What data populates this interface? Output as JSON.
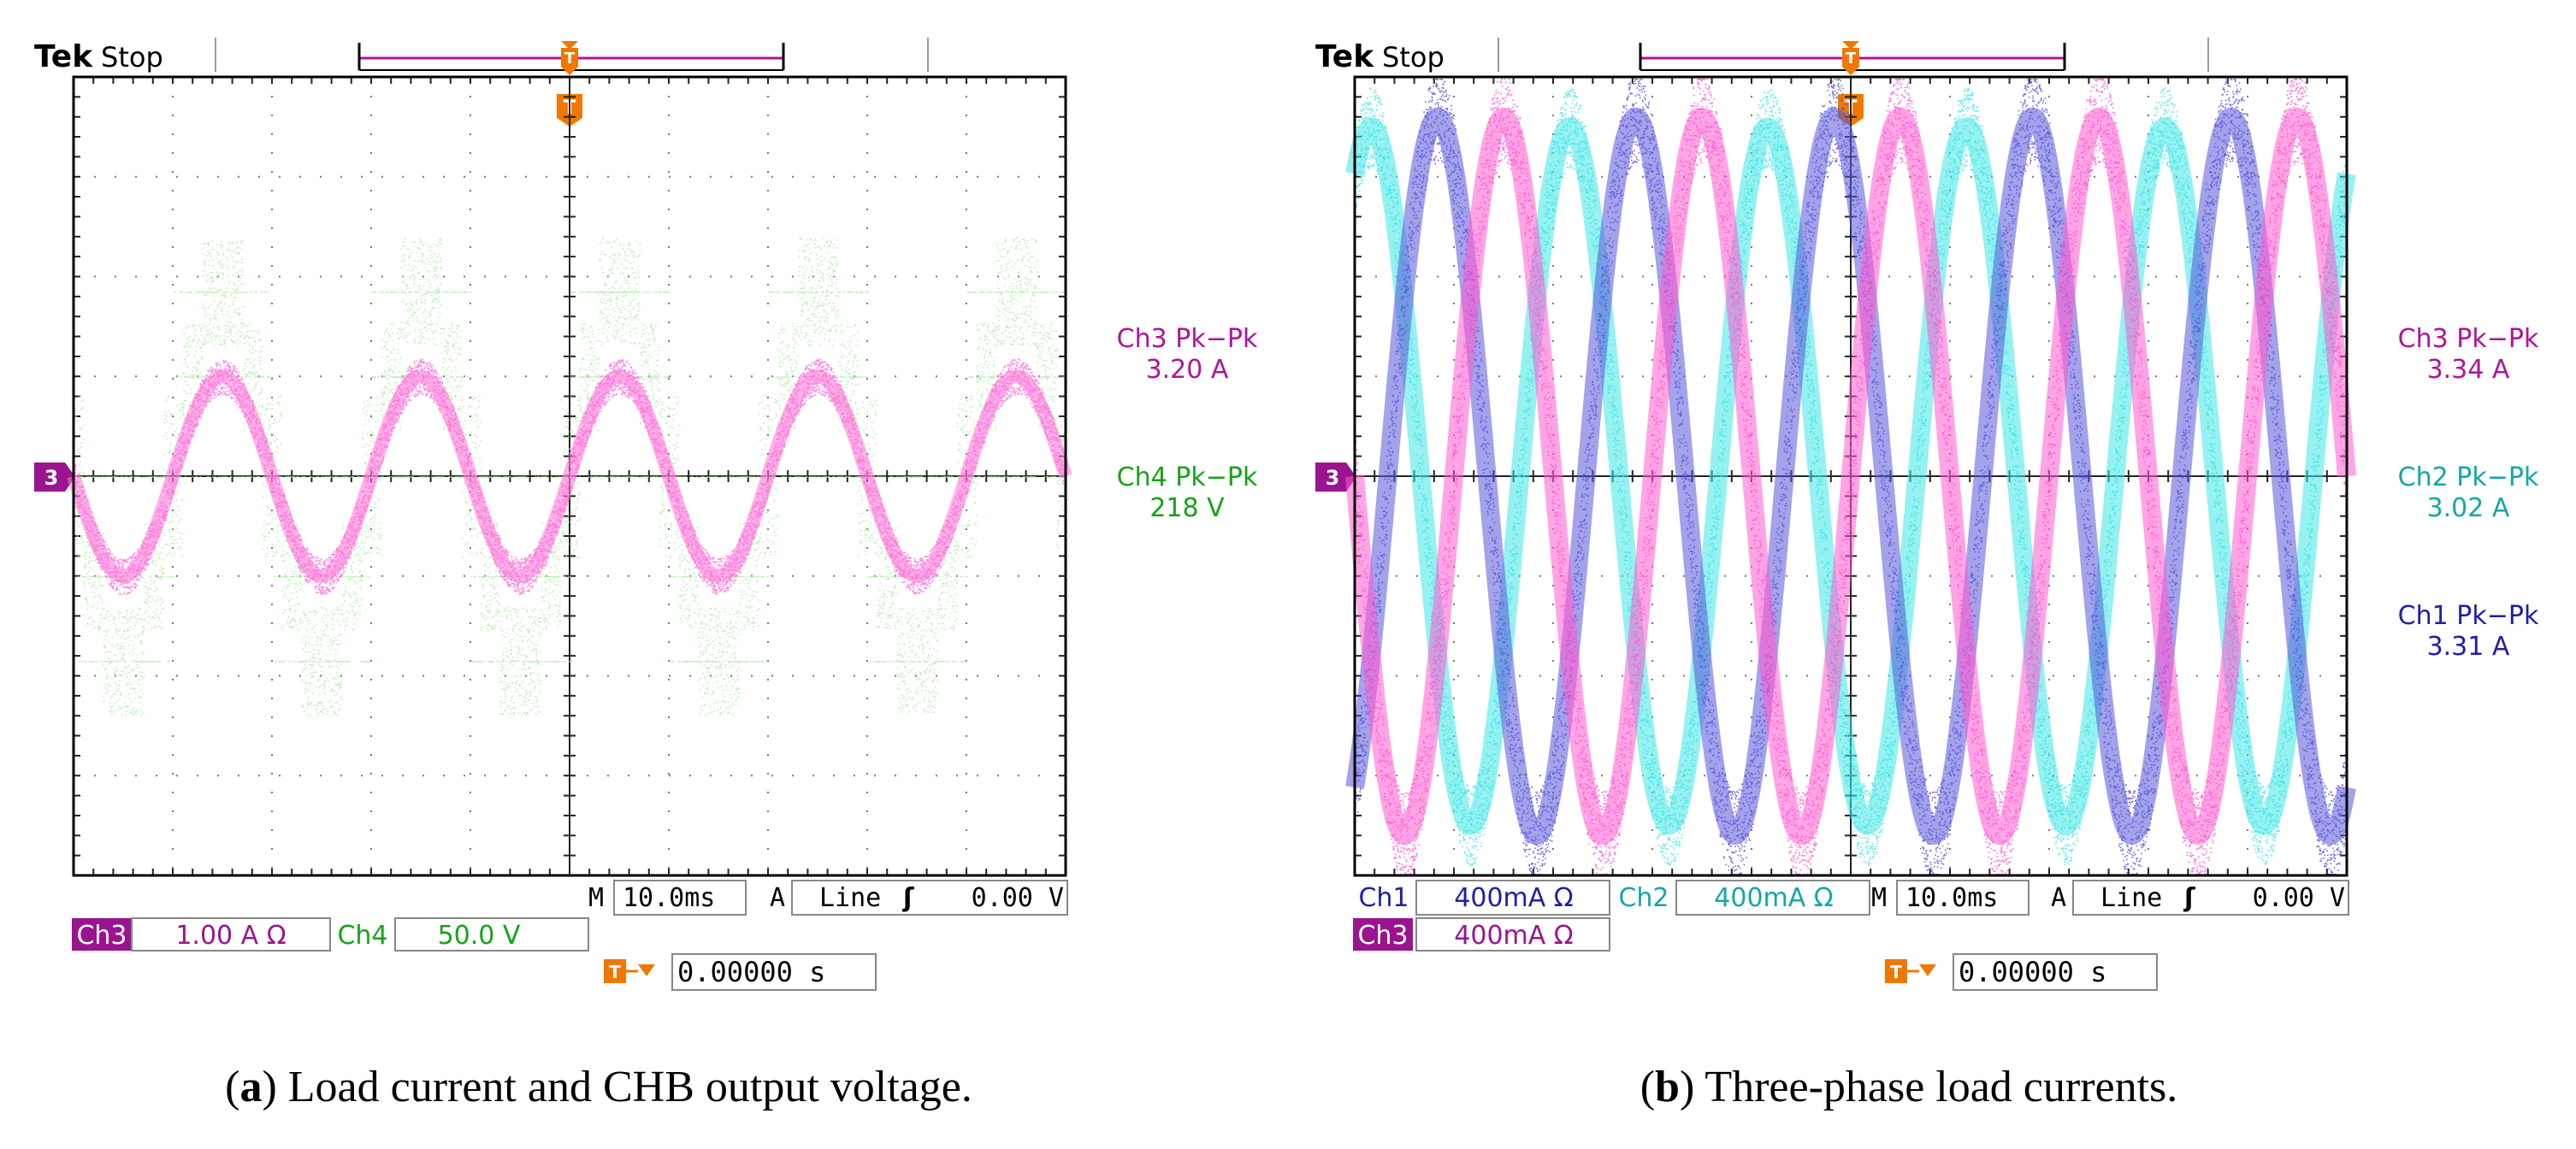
{
  "panels": [
    {
      "brand": "Tek",
      "state": "Stop",
      "trigger_marker": "T",
      "ground_marker": "3",
      "measurements": [
        {
          "label": "Ch3 Pk−Pk",
          "value": "3.20 A",
          "color": "#b0139a"
        },
        {
          "label": "Ch4 Pk−Pk",
          "value": "218 V",
          "color": "#16a316"
        }
      ],
      "timebase": {
        "m_label": "M",
        "m_value": "10.0ms",
        "a_label": "A",
        "source": "Line",
        "slope": "ʃ",
        "level": "0.00 V"
      },
      "channel_scales": [
        {
          "name": "Ch3",
          "scale": "1.00 A Ω",
          "color": "#9b148f",
          "filled": true
        },
        {
          "name": "Ch4",
          "scale": "50.0 V",
          "color": "#16a316",
          "filled": false
        }
      ],
      "trigger_position": {
        "icon": "T→▾",
        "value": "0.00000 s"
      },
      "caption": {
        "letter": "a",
        "text": "Load current and CHB output voltage."
      }
    },
    {
      "brand": "Tek",
      "state": "Stop",
      "trigger_marker": "T",
      "ground_marker": "3",
      "measurements": [
        {
          "label": "Ch3 Pk−Pk",
          "value": "3.34 A",
          "color": "#b0139a"
        },
        {
          "label": "Ch2 Pk−Pk",
          "value": "3.02 A",
          "color": "#13a7a7"
        },
        {
          "label": "Ch1 Pk−Pk",
          "value": "3.31 A",
          "color": "#1f1fa6"
        }
      ],
      "timebase": {
        "m_label": "M",
        "m_value": "10.0ms",
        "a_label": "A",
        "source": "Line",
        "slope": "ʃ",
        "level": "0.00 V"
      },
      "channel_scales": [
        {
          "name": "Ch1",
          "scale": "400mA Ω",
          "color": "#1f1fa6",
          "filled": false
        },
        {
          "name": "Ch2",
          "scale": "400mA Ω",
          "color": "#13a7a7",
          "filled": false
        },
        {
          "name": "Ch3",
          "scale": "400mA Ω",
          "color": "#9b148f",
          "filled": true
        }
      ],
      "trigger_position": {
        "icon": "T→▾",
        "value": "0.00000 s"
      },
      "caption": {
        "letter": "b",
        "text": "Three-phase load currents."
      }
    }
  ],
  "chart_data": [
    {
      "type": "line",
      "title": "Load current and CHB output voltage",
      "x_unit": "ms",
      "x_range": [
        -50,
        50
      ],
      "x_divisions": 10,
      "y_unit": "div",
      "y_range": [
        -4,
        4
      ],
      "y_divisions": 8,
      "series": [
        {
          "name": "Ch4 (CHB output voltage)",
          "color": "#a8eaa0",
          "kind": "stepped",
          "frequency_hz": 50,
          "phase_deg": 0,
          "levels_div": [
            0,
            1,
            1.85
          ],
          "noise_div": 0.9,
          "pk_pk": "218 V"
        },
        {
          "name": "Ch3 (load current)",
          "color": "#ff72d8",
          "kind": "sine",
          "frequency_hz": 50,
          "phase_deg": 0,
          "amplitude_div": 1.0,
          "noise_div": 0.18,
          "pk_pk": "3.20 A"
        }
      ]
    },
    {
      "type": "line",
      "title": "Three-phase load currents",
      "x_unit": "ms",
      "x_range": [
        -50,
        50
      ],
      "x_divisions": 10,
      "y_unit": "div",
      "y_range": [
        -4,
        4
      ],
      "y_divisions": 8,
      "series": [
        {
          "name": "Ch2",
          "color": "#3fe6e6",
          "kind": "sine",
          "frequency_hz": 50,
          "phase_deg": 120,
          "amplitude_div": 3.5,
          "noise_div": 0.4,
          "pk_pk": "3.02 A"
        },
        {
          "name": "Ch1",
          "color": "#5a55d8",
          "kind": "sine",
          "frequency_hz": 50,
          "phase_deg": 240,
          "amplitude_div": 3.6,
          "noise_div": 0.45,
          "pk_pk": "3.31 A"
        },
        {
          "name": "Ch3",
          "color": "#ff5ad0",
          "kind": "sine",
          "frequency_hz": 50,
          "phase_deg": 0,
          "amplitude_div": 3.6,
          "noise_div": 0.45,
          "pk_pk": "3.34 A"
        }
      ]
    }
  ]
}
